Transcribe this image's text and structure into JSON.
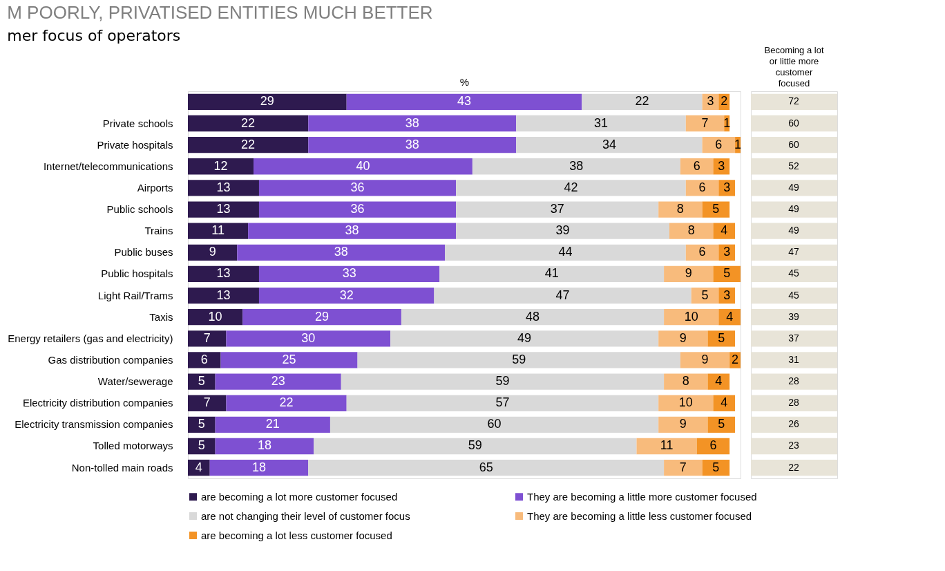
{
  "chart_data": {
    "type": "bar",
    "orientation": "horizontal",
    "stacked": true,
    "data_labels": true,
    "title": "M POORLY, PRIVATISED ENTITIES MUCH BETTER",
    "subtitle": "mer focus of operators",
    "xlabel": "%",
    "categories": [
      null,
      "Private schools",
      "Private hospitals",
      "Internet/telecommunications",
      "Airports",
      "Public schools",
      "Trains",
      "Public buses",
      "Public hospitals",
      "Light Rail/Trams",
      "Taxis",
      "Energy retailers (gas and electricity)",
      "Gas distribution companies",
      "Water/sewerage",
      "Electricity distribution companies",
      "Electricity transmission companies",
      "Tolled motorways",
      "Non-tolled main roads"
    ],
    "series": [
      {
        "name": "are becoming a lot more customer focused",
        "color": "#2e1a4f",
        "values": [
          29,
          22,
          22,
          12,
          13,
          13,
          11,
          9,
          13,
          13,
          10,
          7,
          6,
          5,
          7,
          5,
          5,
          4
        ]
      },
      {
        "name": "They are becoming a little more customer focused",
        "color": "#7e50d2",
        "values": [
          43,
          38,
          38,
          40,
          36,
          36,
          38,
          38,
          33,
          32,
          29,
          30,
          25,
          23,
          22,
          21,
          18,
          18
        ]
      },
      {
        "name": "are not changing their level of customer focus",
        "color": "#d9d9d9",
        "values": [
          22,
          31,
          34,
          38,
          42,
          37,
          39,
          44,
          41,
          47,
          48,
          49,
          59,
          59,
          57,
          60,
          59,
          65
        ]
      },
      {
        "name": "They are becoming a little less customer focused",
        "color": "#f8bb7c",
        "values": [
          3,
          7,
          6,
          6,
          6,
          8,
          8,
          6,
          9,
          5,
          10,
          9,
          9,
          8,
          10,
          9,
          11,
          7
        ]
      },
      {
        "name": "are becoming a lot less customer focused",
        "color": "#f39325",
        "values": [
          2,
          1,
          1,
          3,
          3,
          5,
          4,
          3,
          5,
          3,
          4,
          5,
          2,
          4,
          4,
          5,
          6,
          5
        ]
      }
    ],
    "annotations": [
      "Becoming a lot or little more customer focused",
      "72",
      "60",
      "60",
      "52",
      "49",
      "49",
      "49",
      "47",
      "45",
      "45",
      "39",
      "37",
      "31",
      "28",
      "28",
      "26",
      "23",
      "22"
    ],
    "xlim": [
      0,
      101
    ],
    "tick_labels": "y",
    "grid": false,
    "legend": "bottom"
  }
}
